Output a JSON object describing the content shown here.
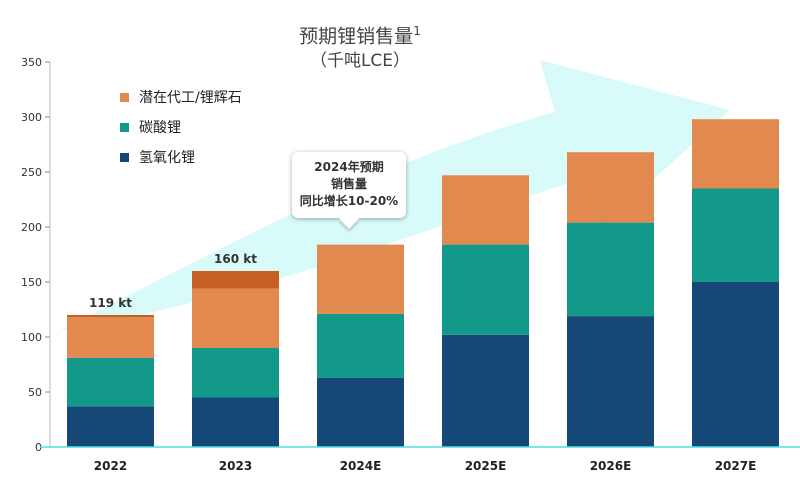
{
  "chart_data": {
    "type": "bar",
    "stacked": true,
    "title": "预期锂销售量",
    "title_sup": "1",
    "subtitle": "（千吨LCE）",
    "categories": [
      "2022",
      "2023",
      "2024E",
      "2025E",
      "2026E",
      "2027E"
    ],
    "series": [
      {
        "name": "氢氧化锂",
        "color": "#154877",
        "values": [
          37,
          45,
          63,
          102,
          119,
          150
        ]
      },
      {
        "name": "碳酸锂",
        "color": "#13998a",
        "values": [
          44,
          45,
          58,
          82,
          85,
          85
        ]
      },
      {
        "name": "潜在代工/锂辉石",
        "color": "#e2894f",
        "values": [
          37,
          54,
          63,
          63,
          64,
          63
        ]
      },
      {
        "name": "",
        "color": "#c85f22",
        "values": [
          2,
          16,
          0,
          0,
          0,
          0
        ]
      }
    ],
    "total_labels": [
      "119 kt",
      "160 kt",
      "",
      "",
      "",
      ""
    ],
    "ylim": [
      0,
      350
    ],
    "yticks": [
      0,
      50,
      100,
      150,
      200,
      250,
      300,
      350
    ],
    "legend_order": [
      "潜在代工/锂辉石",
      "碳酸锂",
      "氢氧化锂"
    ],
    "annotation": [
      "2024年预期",
      "销售量",
      "同比增长10-20%"
    ],
    "arrow_color": "#d8fbfa",
    "baseline_color": "#4ee0e0"
  }
}
